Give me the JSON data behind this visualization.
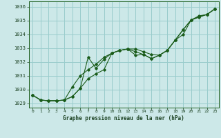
{
  "title": "Graphe pression niveau de la mer (hPa)",
  "background_color": "#cce8e8",
  "grid_color": "#99cccc",
  "line_color": "#1a5c1a",
  "ylim": [
    1028.7,
    1036.4
  ],
  "yticks": [
    1029,
    1030,
    1031,
    1032,
    1033,
    1034,
    1035,
    1036
  ],
  "x_labels": [
    "0",
    "1",
    "2",
    "3",
    "4",
    "5",
    "6",
    "7",
    "8",
    "9",
    "10",
    "11",
    "12",
    "13",
    "14",
    "15",
    "16",
    "17",
    "18",
    "19",
    "20",
    "21",
    "22",
    "23"
  ],
  "series1": [
    1029.6,
    1029.25,
    1029.2,
    1029.2,
    1029.25,
    1029.5,
    1030.1,
    1030.8,
    1031.15,
    1031.45,
    1032.65,
    1032.85,
    1032.95,
    1032.95,
    1032.75,
    1032.55,
    1032.5,
    1032.85,
    1033.6,
    1034.0,
    1035.05,
    1035.25,
    1035.45,
    1035.85
  ],
  "series2": [
    1029.6,
    1029.25,
    1029.2,
    1029.2,
    1029.25,
    1030.2,
    1031.0,
    1031.45,
    1031.85,
    1032.35,
    1032.65,
    1032.85,
    1032.95,
    1032.5,
    1032.55,
    1032.25,
    1032.5,
    1032.85,
    1033.6,
    1034.35,
    1035.05,
    1035.3,
    1035.45,
    1035.85
  ],
  "series3": [
    1029.6,
    1029.25,
    1029.2,
    1029.2,
    1029.25,
    1029.5,
    1030.1,
    1032.35,
    1031.55,
    1032.2,
    1032.65,
    1032.85,
    1032.95,
    1032.75,
    1032.55,
    1032.25,
    1032.5,
    1032.85,
    1033.6,
    1034.35,
    1035.05,
    1035.35,
    1035.45,
    1035.85
  ]
}
